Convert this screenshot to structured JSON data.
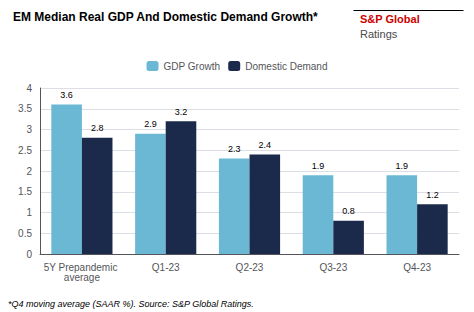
{
  "chart_data": {
    "type": "bar",
    "title": "EM Median Real GDP And Domestic Demand Growth*",
    "categories": [
      "5Y Prepandemic average",
      "Q1-23",
      "Q2-23",
      "Q3-23",
      "Q4-23"
    ],
    "series": [
      {
        "name": "GDP Growth",
        "color": "#6BB8D4",
        "values": [
          3.6,
          2.9,
          2.3,
          1.9,
          1.9
        ]
      },
      {
        "name": "Domestic Demand",
        "color": "#1B2A4A",
        "values": [
          2.8,
          3.2,
          2.4,
          0.8,
          1.2
        ]
      }
    ],
    "ylim": [
      0,
      4
    ],
    "yticks": [
      0,
      0.5,
      1,
      1.5,
      2,
      2.5,
      3,
      3.5,
      4
    ],
    "grid": true,
    "legend": "top",
    "data_labels": true,
    "annotations": [
      {
        "text": "S&P Global",
        "color": "#CC0000"
      },
      {
        "text": "Ratings",
        "color": "#4A4A4A"
      },
      {
        "text": "*Q4 moving average (SAAR %). Source: S&P Global Ratings."
      }
    ]
  }
}
